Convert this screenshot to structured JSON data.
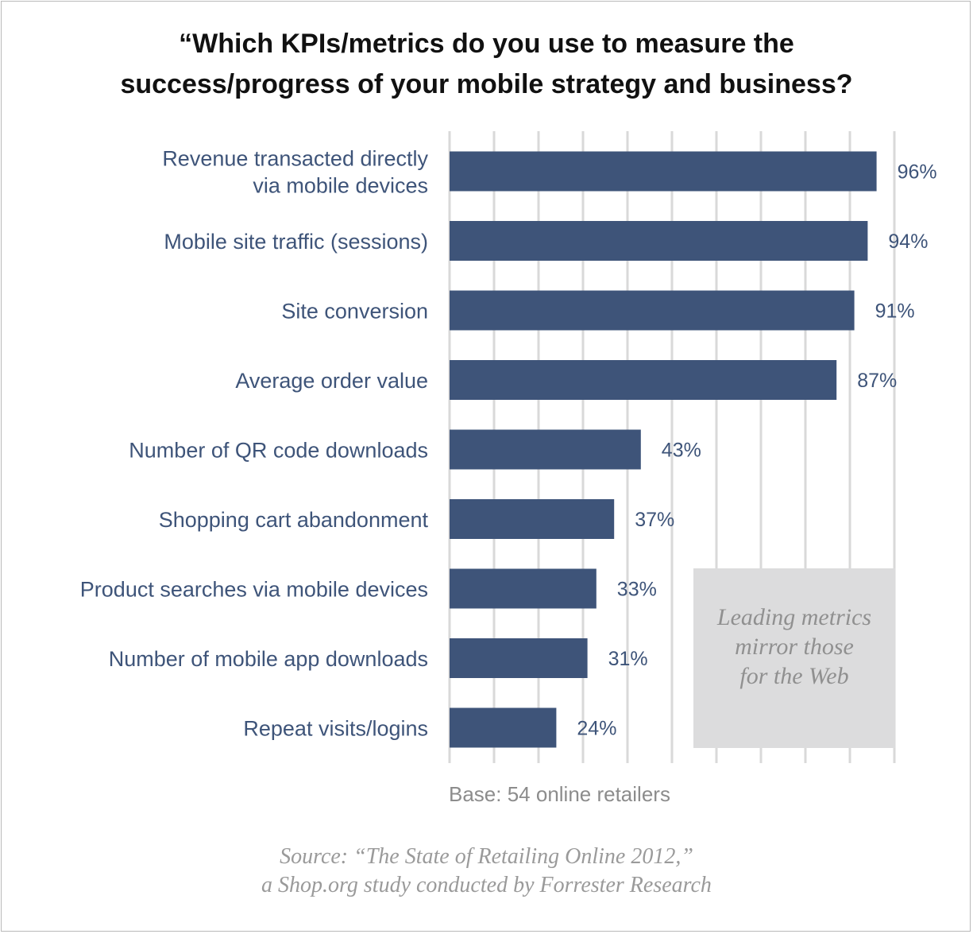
{
  "colors": {
    "bar": "#3e5479",
    "gridline": "#d9d9d9",
    "callout_bg": "#dcdcdd",
    "muted_text": "#9a9a9a"
  },
  "title_lines": [
    "“Which KPIs/metrics do you use to measure the",
    "success/progress of your mobile strategy and business?"
  ],
  "callout_lines": [
    "Leading metrics",
    "mirror those",
    "for the Web"
  ],
  "base_note": "Base: 54 online retailers",
  "source_lines": [
    "Source: “The State of Retailing Online 2012,”",
    "a Shop.org study conducted by Forrester Research"
  ],
  "chart_data": {
    "type": "bar",
    "orientation": "horizontal",
    "categories": [
      [
        "Revenue transacted directly",
        "via mobile devices"
      ],
      [
        "Mobile site traffic (sessions)"
      ],
      [
        "Site conversion"
      ],
      [
        "Average order value"
      ],
      [
        "Number of QR code downloads"
      ],
      [
        "Shopping cart abandonment"
      ],
      [
        "Product searches via mobile devices"
      ],
      [
        "Number of mobile app downloads"
      ],
      [
        "Repeat visits/logins"
      ]
    ],
    "values": [
      96,
      94,
      91,
      87,
      43,
      37,
      33,
      31,
      24
    ],
    "value_labels": [
      "96%",
      "94%",
      "91%",
      "87%",
      "43%",
      "37%",
      "33%",
      "31%",
      "24%"
    ],
    "xlim": [
      0,
      100
    ],
    "grid": true,
    "unit": "%"
  }
}
